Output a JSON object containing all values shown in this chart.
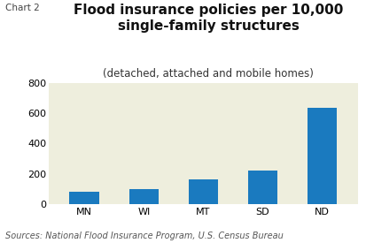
{
  "categories": [
    "MN",
    "WI",
    "MT",
    "SD",
    "ND"
  ],
  "values": [
    80,
    100,
    165,
    220,
    635
  ],
  "bar_color": "#1a7abf",
  "title_line1": "Flood insurance policies per 10,000",
  "title_line2": "single-family structures",
  "subtitle": "(detached, attached and mobile homes)",
  "chart_label": "Chart 2",
  "source": "Sources: National Flood Insurance Program, U.S. Census Bureau",
  "ylim": [
    0,
    800
  ],
  "yticks": [
    0,
    200,
    400,
    600,
    800
  ],
  "background_color": "#eeeedd",
  "fig_background": "#ffffff",
  "title_fontsize": 11,
  "subtitle_fontsize": 8.5,
  "tick_fontsize": 8,
  "source_fontsize": 7,
  "chart_label_fontsize": 7.5
}
